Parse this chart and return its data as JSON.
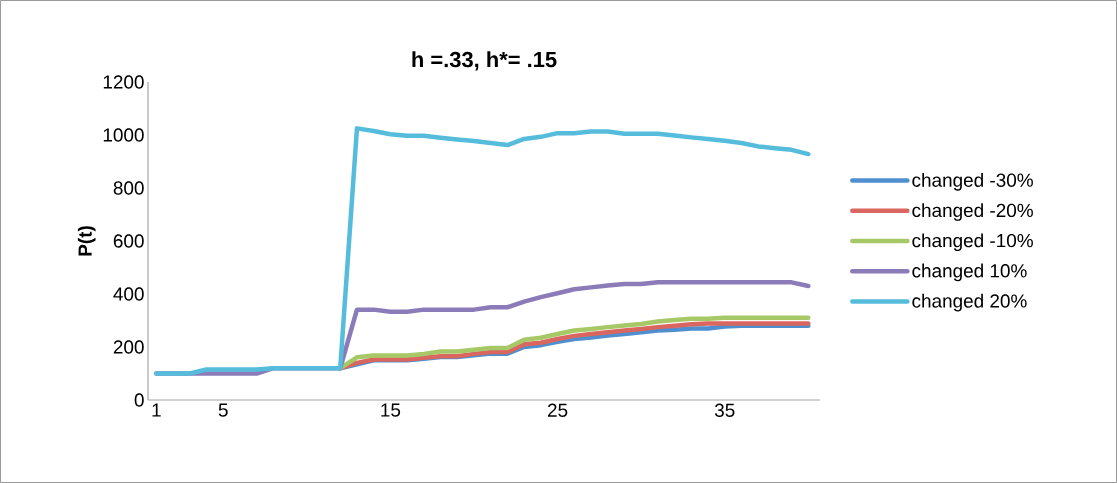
{
  "chart_data": {
    "type": "line",
    "title": "h =.33, h*= .15",
    "ylabel": "P(t)",
    "categories": [
      "1",
      null,
      null,
      null,
      "5",
      null,
      null,
      null,
      null,
      null,
      null,
      null,
      null,
      null,
      "15",
      null,
      null,
      null,
      null,
      null,
      null,
      null,
      null,
      null,
      "25",
      null,
      null,
      null,
      null,
      null,
      null,
      null,
      null,
      null,
      "35",
      null,
      null,
      null,
      null,
      null
    ],
    "ylim": [
      0,
      1200
    ],
    "yticks": [
      0,
      200,
      400,
      600,
      800,
      1000,
      1200
    ],
    "legend": "right",
    "series": [
      {
        "name": "changed -30%",
        "color": "#4f8fcf",
        "values": [
          null,
          null,
          null,
          null,
          null,
          null,
          null,
          null,
          null,
          null,
          null,
          120,
          135,
          150,
          150,
          150,
          156,
          162,
          162,
          169,
          175,
          175,
          200,
          207,
          220,
          230,
          236,
          243,
          249,
          256,
          262,
          265,
          270,
          270,
          277,
          280,
          280,
          280,
          280,
          280
        ]
      },
      {
        "name": "changed -20%",
        "color": "#d9675f",
        "values": [
          null,
          null,
          null,
          null,
          null,
          null,
          null,
          null,
          null,
          null,
          null,
          120,
          140,
          153,
          153,
          153,
          159,
          165,
          165,
          174,
          181,
          181,
          210,
          216,
          230,
          242,
          249,
          256,
          262,
          268,
          275,
          280,
          286,
          289,
          289,
          289,
          289,
          289,
          289,
          289
        ]
      },
      {
        "name": "changed -10%",
        "color": "#a6c866",
        "values": [
          null,
          null,
          null,
          null,
          null,
          null,
          null,
          null,
          null,
          null,
          null,
          120,
          161,
          168,
          168,
          168,
          174,
          183,
          183,
          190,
          196,
          196,
          227,
          235,
          249,
          262,
          268,
          275,
          281,
          287,
          296,
          302,
          307,
          307,
          310,
          310,
          310,
          310,
          310,
          310
        ]
      },
      {
        "name": "changed 10%",
        "color": "#8b7bb8",
        "values": [
          100,
          100,
          100,
          100,
          100,
          100,
          100,
          120,
          120,
          120,
          120,
          120,
          341,
          341,
          333,
          333,
          341,
          341,
          341,
          341,
          350,
          350,
          371,
          388,
          403,
          418,
          425,
          432,
          438,
          438,
          444,
          444,
          444,
          444,
          444,
          444,
          444,
          444,
          444,
          430
        ]
      },
      {
        "name": "changed 20%",
        "color": "#55bcdc",
        "values": [
          100,
          100,
          100,
          115,
          115,
          115,
          115,
          120,
          120,
          120,
          120,
          120,
          1025,
          1015,
          1003,
          997,
          997,
          990,
          983,
          977,
          970,
          962,
          985,
          993,
          1007,
          1007,
          1013,
          1013,
          1005,
          1005,
          1005,
          998,
          991,
          985,
          978,
          970,
          957,
          950,
          944,
          928
        ]
      }
    ]
  }
}
